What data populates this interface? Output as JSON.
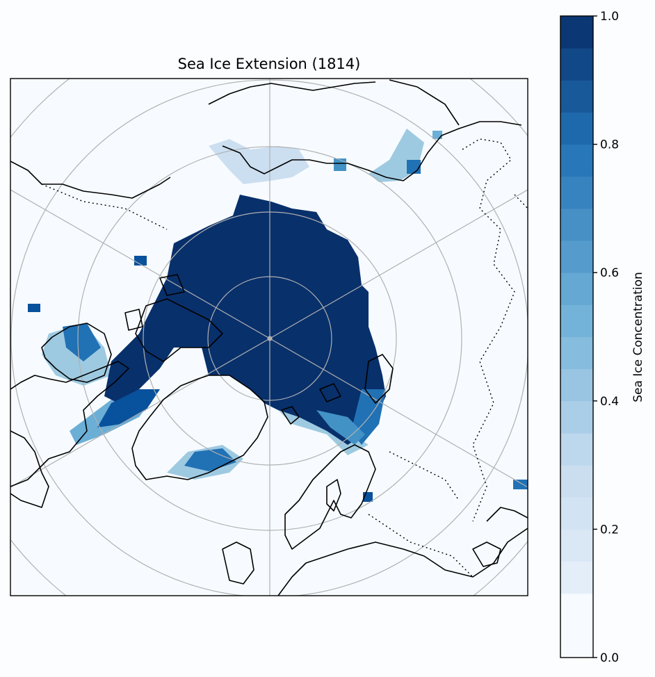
{
  "title": "Sea Ice Extension (1814)",
  "colorbar": {
    "label": "Sea Ice Concentration",
    "ticks": [
      {
        "value": 0.0,
        "label": "0.0"
      },
      {
        "value": 0.2,
        "label": "0.2"
      },
      {
        "value": 0.4,
        "label": "0.4"
      },
      {
        "value": 0.6,
        "label": "0.6"
      },
      {
        "value": 0.8,
        "label": "0.8"
      },
      {
        "value": 1.0,
        "label": "1.0"
      }
    ],
    "range": [
      0.0,
      1.0
    ],
    "colormap": "Blues",
    "low_color": "#f7fbff",
    "high_color": "#08306b"
  },
  "map": {
    "projection": "north-polar-stereographic",
    "land_outline_color": "#000000",
    "ocean_color": "#f7fbff",
    "ice_core_color": "#08306b",
    "gridline_color": "#b0b0b0",
    "latitude_circles_deg": [
      40,
      50,
      60,
      70,
      80
    ],
    "meridian_spacing_deg": 60
  }
}
